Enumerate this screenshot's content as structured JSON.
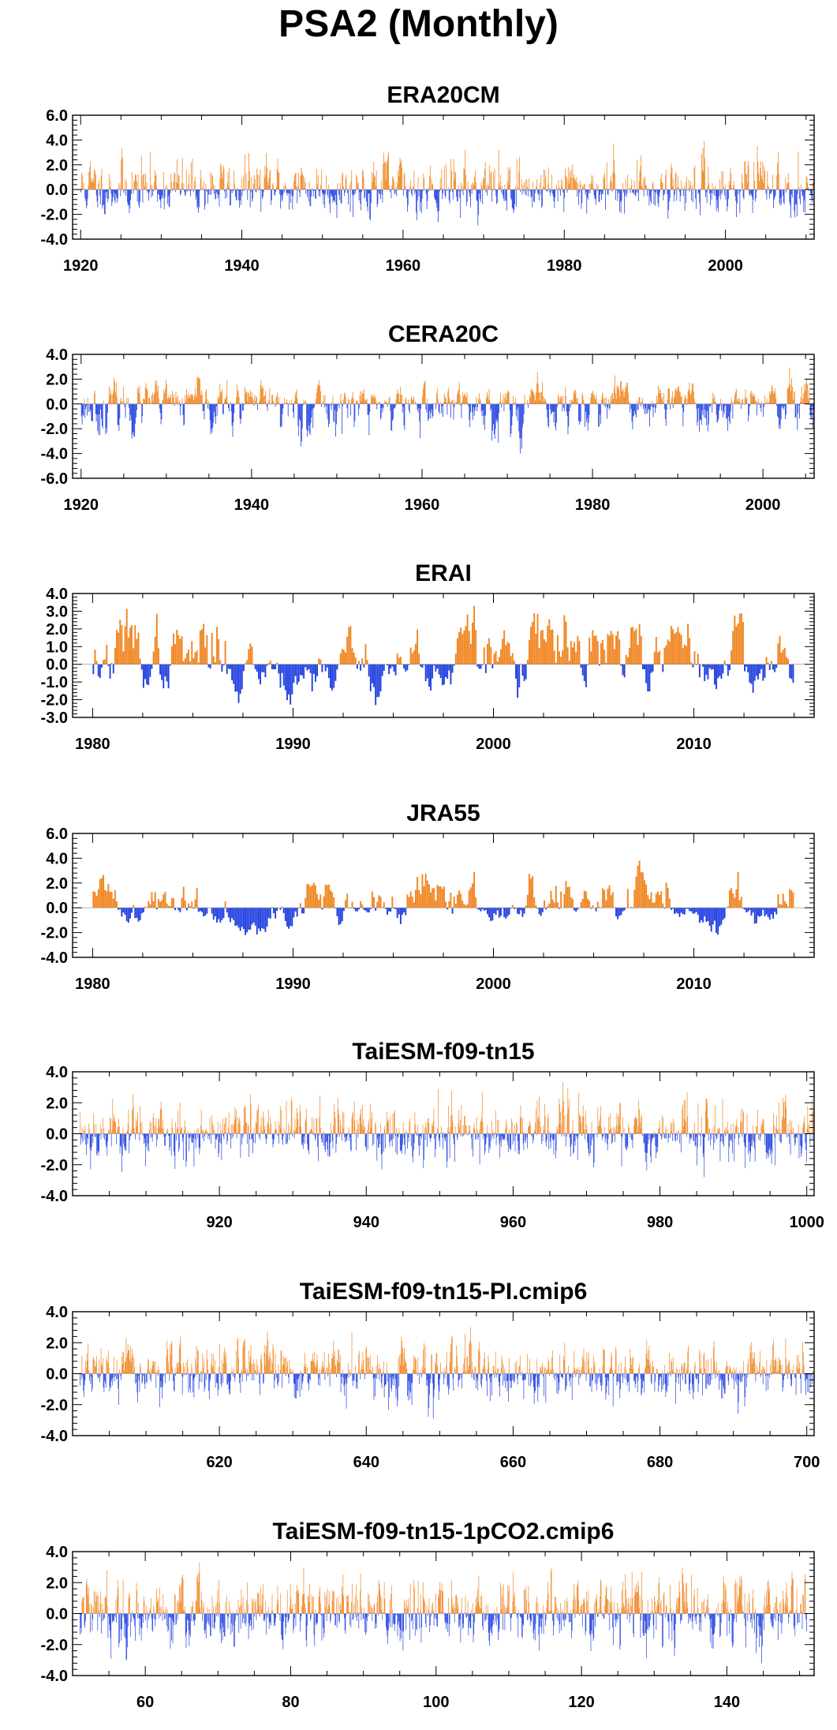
{
  "title": "PSA2 (Monthly)",
  "colors": {
    "positive": "#f08520",
    "negative": "#2040e0",
    "axis": "#000000"
  },
  "chart_data": [
    {
      "type": "bar",
      "title": "ERA20CM",
      "xlim": [
        1919,
        2011
      ],
      "ylim": [
        -4.0,
        6.0
      ],
      "ytick_labels": [
        "6.0",
        "4.0",
        "2.0",
        "0.0",
        "-2.0",
        "-4.0"
      ],
      "xticks": [
        1920,
        1940,
        1960,
        1980,
        2000
      ],
      "xtick_labels": [
        "1920",
        "1940",
        "1960",
        "1980",
        "2000"
      ],
      "series": {
        "x_start": 1920,
        "x_end": 2011,
        "months": 1092,
        "peak_pos": 3.9,
        "peak_neg": -2.9,
        "seed": 11,
        "persistence": 0.45,
        "amp": 0.75
      }
    },
    {
      "type": "bar",
      "title": "CERA20C",
      "xlim": [
        1919,
        2006
      ],
      "ylim": [
        -6.0,
        4.0
      ],
      "ytick_labels": [
        "4.0",
        "2.0",
        "0.0",
        "-2.0",
        "-4.0",
        "-6.0"
      ],
      "xticks": [
        1920,
        1940,
        1960,
        1980,
        2000
      ],
      "xtick_labels": [
        "1920",
        "1940",
        "1960",
        "1980",
        "2000"
      ],
      "series": {
        "x_start": 1920,
        "x_end": 2006,
        "months": 1032,
        "peak_pos": 2.9,
        "peak_neg": -4.0,
        "seed": 23,
        "persistence": 0.7,
        "amp": 0.8
      }
    },
    {
      "type": "bar",
      "title": "ERAI",
      "xlim": [
        1979,
        2016
      ],
      "ylim": [
        -3.0,
        4.0
      ],
      "ytick_labels": [
        "4.0",
        "3.0",
        "2.0",
        "1.0",
        "0.0",
        "-1.0",
        "-2.0",
        "-3.0"
      ],
      "xticks": [
        1980,
        1990,
        2000,
        2010
      ],
      "xtick_labels": [
        "1980",
        "1990",
        "2000",
        "2010"
      ],
      "series": {
        "x_start": 1980,
        "x_end": 2015,
        "months": 420,
        "peak_pos": 3.3,
        "peak_neg": -2.3,
        "seed": 37,
        "persistence": 0.85,
        "amp": 0.8
      }
    },
    {
      "type": "bar",
      "title": "JRA55",
      "xlim": [
        1979,
        2016
      ],
      "ylim": [
        -4.0,
        6.0
      ],
      "ytick_labels": [
        "6.0",
        "4.0",
        "2.0",
        "0.0",
        "-2.0",
        "-4.0"
      ],
      "xticks": [
        1980,
        1990,
        2000,
        2010
      ],
      "xtick_labels": [
        "1980",
        "1990",
        "2000",
        "2010"
      ],
      "series": {
        "x_start": 1980,
        "x_end": 2015,
        "months": 420,
        "peak_pos": 3.8,
        "peak_neg": -2.2,
        "seed": 41,
        "persistence": 0.85,
        "amp": 0.9
      }
    },
    {
      "type": "bar",
      "title": "TaiESM-f09-tn15",
      "xlim": [
        900,
        1001
      ],
      "ylim": [
        -4.0,
        4.0
      ],
      "ytick_labels": [
        "4.0",
        "2.0",
        "0.0",
        "-2.0",
        "-4.0"
      ],
      "xticks": [
        920,
        940,
        960,
        980,
        1000
      ],
      "xtick_labels": [
        "920",
        "940",
        "960",
        "980",
        "1000"
      ],
      "series": {
        "x_start": 901,
        "x_end": 1001,
        "months": 1200,
        "peak_pos": 3.3,
        "peak_neg": -2.8,
        "seed": 53,
        "persistence": 0.4,
        "amp": 0.8
      }
    },
    {
      "type": "bar",
      "title": "TaiESM-f09-tn15-PI.cmip6",
      "xlim": [
        600,
        701
      ],
      "ylim": [
        -4.0,
        4.0
      ],
      "ytick_labels": [
        "4.0",
        "2.0",
        "0.0",
        "-2.0",
        "-4.0"
      ],
      "xticks": [
        620,
        640,
        660,
        680,
        700
      ],
      "xtick_labels": [
        "620",
        "640",
        "660",
        "680",
        "700"
      ],
      "series": {
        "x_start": 601,
        "x_end": 701,
        "months": 1200,
        "peak_pos": 3.0,
        "peak_neg": -2.9,
        "seed": 67,
        "persistence": 0.45,
        "amp": 0.75
      }
    },
    {
      "type": "bar",
      "title": "TaiESM-f09-tn15-1pCO2.cmip6",
      "xlim": [
        50,
        152
      ],
      "ylim": [
        -4.0,
        4.0
      ],
      "ytick_labels": [
        "4.0",
        "2.0",
        "0.0",
        "-2.0",
        "-4.0"
      ],
      "xticks": [
        60,
        80,
        100,
        120,
        140
      ],
      "xtick_labels": [
        "60",
        "80",
        "100",
        "120",
        "140"
      ],
      "series": {
        "x_start": 51,
        "x_end": 151,
        "months": 1200,
        "peak_pos": 3.3,
        "peak_neg": -3.2,
        "seed": 79,
        "persistence": 0.45,
        "amp": 0.75
      }
    }
  ]
}
